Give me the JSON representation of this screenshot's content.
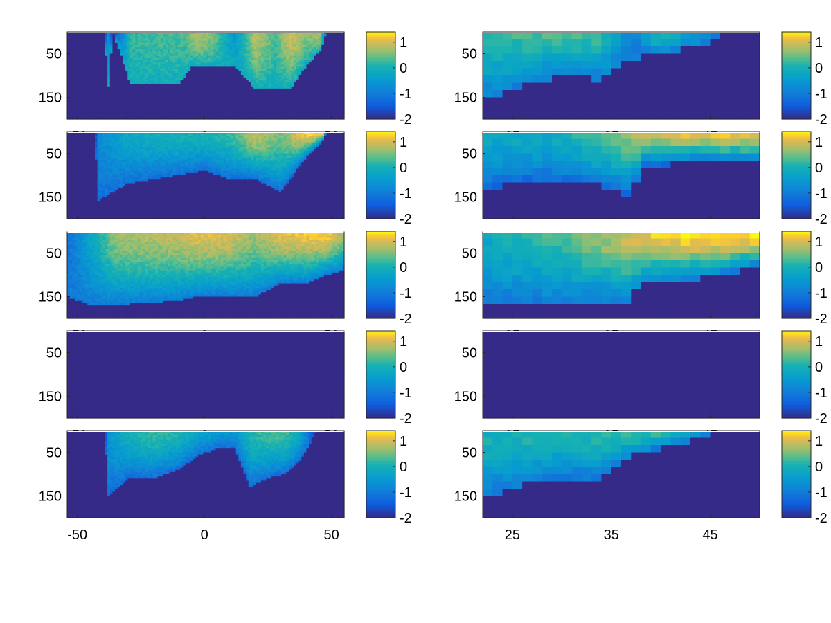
{
  "figure": {
    "layout": "5 rows x 2 columns of heatmap panels, each with a colorbar"
  },
  "chart_data": [
    {
      "type": "heatmap",
      "row": 1,
      "col": "left",
      "x": [
        -54,
        55
      ],
      "y": [
        0,
        200
      ],
      "xticks": [
        -50,
        0,
        50
      ],
      "yticks": [
        50,
        150
      ],
      "clim": [
        -2,
        1.4
      ],
      "colorbar_ticks": [
        1,
        0,
        -1,
        -2
      ],
      "grid": false,
      "profile": {
        "surface": [
          [
            -54,
            -2
          ],
          [
            -39,
            -2
          ],
          [
            -38,
            -0.4
          ],
          [
            -36,
            -2
          ],
          [
            -29,
            0.2
          ],
          [
            -8,
            0.3
          ],
          [
            -3,
            0.8
          ],
          [
            3,
            0.6
          ],
          [
            12,
            -0.6
          ],
          [
            20,
            0.9
          ],
          [
            28,
            0.3
          ],
          [
            34,
            1.0
          ],
          [
            40,
            0.6
          ],
          [
            46,
            0.8
          ],
          [
            48,
            -2
          ],
          [
            55,
            -2
          ]
        ],
        "depth": [
          [
            -54,
            0
          ],
          [
            -39,
            0
          ],
          [
            -38,
            150
          ],
          [
            -36,
            0
          ],
          [
            -29,
            120
          ],
          [
            -10,
            120
          ],
          [
            -5,
            80
          ],
          [
            5,
            80
          ],
          [
            12,
            80
          ],
          [
            20,
            130
          ],
          [
            28,
            130
          ],
          [
            34,
            130
          ],
          [
            40,
            80
          ],
          [
            46,
            40
          ],
          [
            48,
            0
          ],
          [
            55,
            0
          ]
        ],
        "bottom": -0.1
      }
    },
    {
      "type": "heatmap",
      "row": 1,
      "col": "right",
      "x": [
        22,
        50
      ],
      "y": [
        0,
        200
      ],
      "xticks": [
        25,
        35,
        45
      ],
      "yticks": [
        50,
        150
      ],
      "clim": [
        -2,
        1.4
      ],
      "colorbar_ticks": [
        1,
        0,
        -1,
        -2
      ],
      "grid": false,
      "profile": {
        "surface": [
          [
            22,
            0.2
          ],
          [
            30,
            0.3
          ],
          [
            34,
            0.2
          ],
          [
            37,
            -1.0
          ],
          [
            40,
            0.3
          ],
          [
            45,
            -0.8
          ],
          [
            46,
            -2
          ],
          [
            50,
            -2
          ]
        ],
        "depth": [
          [
            22,
            160
          ],
          [
            27,
            115
          ],
          [
            31,
            100
          ],
          [
            34,
            110
          ],
          [
            37,
            60
          ],
          [
            40,
            50
          ],
          [
            45,
            30
          ],
          [
            46,
            0
          ],
          [
            50,
            0
          ]
        ],
        "bottom": -1.0
      }
    },
    {
      "type": "heatmap",
      "row": 2,
      "col": "left",
      "x": [
        -54,
        55
      ],
      "y": [
        0,
        200
      ],
      "xticks": [
        -50,
        0,
        50
      ],
      "yticks": [
        50,
        150
      ],
      "clim": [
        -2,
        1.4
      ],
      "colorbar_ticks": [
        1,
        0,
        -1,
        -2
      ],
      "grid": false,
      "profile": {
        "surface": [
          [
            -54,
            -2
          ],
          [
            -43,
            -2
          ],
          [
            -42,
            -0.8
          ],
          [
            -30,
            -0.2
          ],
          [
            -10,
            0.0
          ],
          [
            0,
            0.0
          ],
          [
            10,
            0.2
          ],
          [
            20,
            0.9
          ],
          [
            30,
            0.5
          ],
          [
            40,
            1.3
          ],
          [
            47,
            1.4
          ],
          [
            48,
            -2
          ],
          [
            55,
            -2
          ]
        ],
        "depth": [
          [
            -54,
            0
          ],
          [
            -43,
            0
          ],
          [
            -42,
            160
          ],
          [
            -30,
            120
          ],
          [
            -10,
            100
          ],
          [
            0,
            90
          ],
          [
            10,
            110
          ],
          [
            20,
            110
          ],
          [
            30,
            140
          ],
          [
            40,
            60
          ],
          [
            47,
            20
          ],
          [
            48,
            0
          ],
          [
            55,
            0
          ]
        ],
        "bottom": -1.2
      }
    },
    {
      "type": "heatmap",
      "row": 2,
      "col": "right",
      "x": [
        22,
        50
      ],
      "y": [
        0,
        200
      ],
      "xticks": [
        25,
        35,
        45
      ],
      "yticks": [
        50,
        150
      ],
      "clim": [
        -2,
        1.4
      ],
      "colorbar_ticks": [
        1,
        0,
        -1,
        -2
      ],
      "grid": false,
      "profile": {
        "surface": [
          [
            22,
            -0.2
          ],
          [
            30,
            -0.1
          ],
          [
            34,
            0.4
          ],
          [
            37,
            0.7
          ],
          [
            40,
            1.0
          ],
          [
            45,
            1.2
          ],
          [
            50,
            1.2
          ]
        ],
        "depth": [
          [
            22,
            130
          ],
          [
            28,
            110
          ],
          [
            33,
            120
          ],
          [
            37,
            150
          ],
          [
            38,
            80
          ],
          [
            44,
            70
          ],
          [
            50,
            70
          ]
        ],
        "bottom": -1.3
      }
    },
    {
      "type": "heatmap",
      "row": 3,
      "col": "left",
      "x": [
        -54,
        55
      ],
      "y": [
        0,
        200
      ],
      "xticks": [
        -50,
        0,
        50
      ],
      "yticks": [
        50,
        150
      ],
      "clim": [
        -2,
        1.4
      ],
      "colorbar_ticks": [
        1,
        0,
        -1,
        -2
      ],
      "grid": false,
      "profile": {
        "surface": [
          [
            -54,
            -1.2
          ],
          [
            -45,
            -0.3
          ],
          [
            -35,
            0.7
          ],
          [
            -10,
            0.9
          ],
          [
            -3,
            1.1
          ],
          [
            10,
            1.0
          ],
          [
            20,
            0.7
          ],
          [
            30,
            1.1
          ],
          [
            40,
            1.2
          ],
          [
            48,
            1.3
          ],
          [
            55,
            0.8
          ]
        ],
        "depth": [
          [
            -54,
            150
          ],
          [
            -45,
            170
          ],
          [
            -35,
            170
          ],
          [
            -10,
            160
          ],
          [
            -3,
            150
          ],
          [
            10,
            150
          ],
          [
            20,
            150
          ],
          [
            30,
            120
          ],
          [
            40,
            120
          ],
          [
            48,
            100
          ],
          [
            55,
            90
          ]
        ],
        "bottom": -1.0
      }
    },
    {
      "type": "heatmap",
      "row": 3,
      "col": "right",
      "x": [
        22,
        50
      ],
      "y": [
        0,
        200
      ],
      "xticks": [
        25,
        35,
        45
      ],
      "yticks": [
        50,
        150
      ],
      "clim": [
        -2,
        1.4
      ],
      "colorbar_ticks": [
        1,
        0,
        -1,
        -2
      ],
      "grid": false,
      "profile": {
        "surface": [
          [
            22,
            -0.2
          ],
          [
            28,
            0.2
          ],
          [
            33,
            0.6
          ],
          [
            37,
            1.0
          ],
          [
            40,
            1.3
          ],
          [
            45,
            1.4
          ],
          [
            50,
            1.4
          ]
        ],
        "depth": [
          [
            22,
            160
          ],
          [
            28,
            160
          ],
          [
            33,
            160
          ],
          [
            37,
            160
          ],
          [
            38,
            120
          ],
          [
            44,
            110
          ],
          [
            46,
            100
          ],
          [
            50,
            80
          ]
        ],
        "bottom": -1.0
      }
    },
    {
      "type": "heatmap",
      "row": 4,
      "col": "left",
      "x": [
        -54,
        55
      ],
      "y": [
        0,
        200
      ],
      "xticks": [
        -50,
        0,
        50
      ],
      "yticks": [
        50,
        150
      ],
      "clim": [
        -2,
        1.4
      ],
      "colorbar_ticks": [
        1,
        0,
        -1,
        -2
      ],
      "grid": false,
      "profile": {
        "surface": [
          [
            -54,
            -2
          ],
          [
            55,
            -2
          ]
        ],
        "depth": [
          [
            -54,
            0
          ],
          [
            55,
            0
          ]
        ],
        "bottom": -2
      }
    },
    {
      "type": "heatmap",
      "row": 4,
      "col": "right",
      "x": [
        22,
        50
      ],
      "y": [
        0,
        200
      ],
      "xticks": [
        25,
        35,
        45
      ],
      "yticks": [
        50,
        150
      ],
      "clim": [
        -2,
        1.4
      ],
      "colorbar_ticks": [
        1,
        0,
        -1,
        -2
      ],
      "grid": false,
      "profile": {
        "surface": [
          [
            22,
            -2
          ],
          [
            50,
            -2
          ]
        ],
        "depth": [
          [
            22,
            0
          ],
          [
            50,
            0
          ]
        ],
        "bottom": -2
      }
    },
    {
      "type": "heatmap",
      "row": 5,
      "col": "left",
      "x": [
        -54,
        55
      ],
      "y": [
        0,
        200
      ],
      "xticks": [
        -50,
        0,
        50
      ],
      "yticks": [
        50,
        150
      ],
      "clim": [
        -2,
        1.4
      ],
      "colorbar_ticks": [
        1,
        0,
        -1,
        -2
      ],
      "grid": false,
      "profile": {
        "surface": [
          [
            -54,
            -2
          ],
          [
            -39,
            -2
          ],
          [
            -38,
            -0.6
          ],
          [
            -30,
            0.0
          ],
          [
            -20,
            0.2
          ],
          [
            -10,
            0.1
          ],
          [
            -3,
            -0.3
          ],
          [
            5,
            -0.5
          ],
          [
            12,
            -0.6
          ],
          [
            18,
            0.1
          ],
          [
            25,
            0.3
          ],
          [
            32,
            0.3
          ],
          [
            38,
            -0.3
          ],
          [
            44,
            -2
          ],
          [
            55,
            -2
          ]
        ],
        "depth": [
          [
            -54,
            0
          ],
          [
            -39,
            0
          ],
          [
            -38,
            150
          ],
          [
            -30,
            110
          ],
          [
            -20,
            110
          ],
          [
            -10,
            90
          ],
          [
            -3,
            60
          ],
          [
            5,
            40
          ],
          [
            12,
            40
          ],
          [
            18,
            130
          ],
          [
            25,
            110
          ],
          [
            32,
            100
          ],
          [
            38,
            70
          ],
          [
            44,
            0
          ],
          [
            55,
            0
          ]
        ],
        "bottom": -1.2
      }
    },
    {
      "type": "heatmap",
      "row": 5,
      "col": "right",
      "x": [
        22,
        50
      ],
      "y": [
        0,
        200
      ],
      "xticks": [
        25,
        35,
        45
      ],
      "yticks": [
        50,
        150
      ],
      "clim": [
        -2,
        1.4
      ],
      "colorbar_ticks": [
        1,
        0,
        -1,
        -2
      ],
      "grid": false,
      "profile": {
        "surface": [
          [
            22,
            0.0
          ],
          [
            28,
            0.1
          ],
          [
            34,
            0.2
          ],
          [
            40,
            0.3
          ],
          [
            44,
            -0.3
          ],
          [
            46,
            -2
          ],
          [
            50,
            -2
          ]
        ],
        "depth": [
          [
            22,
            160
          ],
          [
            27,
            120
          ],
          [
            30,
            110
          ],
          [
            34,
            110
          ],
          [
            37,
            60
          ],
          [
            40,
            40
          ],
          [
            44,
            20
          ],
          [
            46,
            0
          ],
          [
            50,
            0
          ]
        ],
        "bottom": -1.1
      }
    }
  ]
}
